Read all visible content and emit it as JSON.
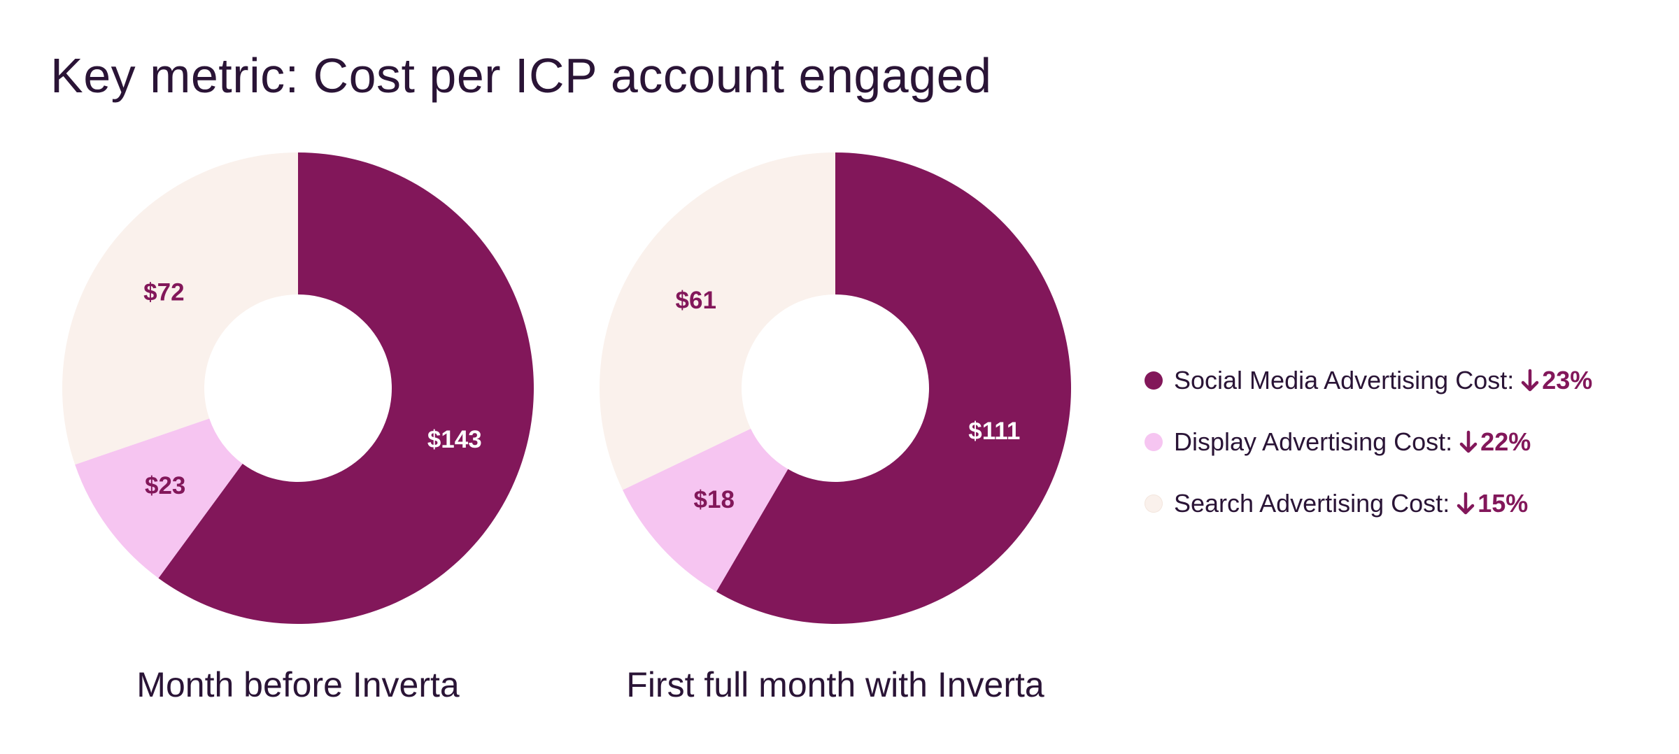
{
  "page": {
    "title": "Key metric: Cost per ICP account engaged"
  },
  "colors": {
    "text": "#2a1436",
    "social": "#82175a",
    "display": "#f6c5f1",
    "search": "#faf1ec",
    "label_on_dark": "#ffffff",
    "label_on_light": "#82175a"
  },
  "chart_data": [
    {
      "type": "pie",
      "variant": "donut",
      "title": "Month before Inverta",
      "categories": [
        "Social Media Advertising Cost",
        "Display Advertising Cost",
        "Search Advertising Cost"
      ],
      "values": [
        143,
        23,
        72
      ],
      "labels": [
        "$143",
        "$23",
        "$72"
      ],
      "colors": [
        "#82175a",
        "#f6c5f1",
        "#faf1ec"
      ],
      "label_colors": [
        "#ffffff",
        "#82175a",
        "#82175a"
      ],
      "start": "12 o'clock",
      "direction": "clockwise"
    },
    {
      "type": "pie",
      "variant": "donut",
      "title": "First full month with Inverta",
      "categories": [
        "Social Media Advertising Cost",
        "Display Advertising Cost",
        "Search Advertising Cost"
      ],
      "values": [
        111,
        18,
        61
      ],
      "labels": [
        "$111",
        "$18",
        "$61"
      ],
      "colors": [
        "#82175a",
        "#f6c5f1",
        "#faf1ec"
      ],
      "label_colors": [
        "#ffffff",
        "#82175a",
        "#82175a"
      ],
      "start": "12 o'clock",
      "direction": "clockwise"
    }
  ],
  "legend": {
    "placement": "right",
    "items": [
      {
        "label": "Social Media Advertising Cost:",
        "change": "23%",
        "direction": "down",
        "color": "#82175a",
        "change_color": "#82175a"
      },
      {
        "label": "Display Advertising Cost:",
        "change": "22%",
        "direction": "down",
        "color": "#f6c5f1",
        "change_color": "#82175a"
      },
      {
        "label": "Search Advertising Cost:",
        "change": "15%",
        "direction": "down",
        "color": "#faf1ec",
        "change_color": "#82175a"
      }
    ]
  }
}
